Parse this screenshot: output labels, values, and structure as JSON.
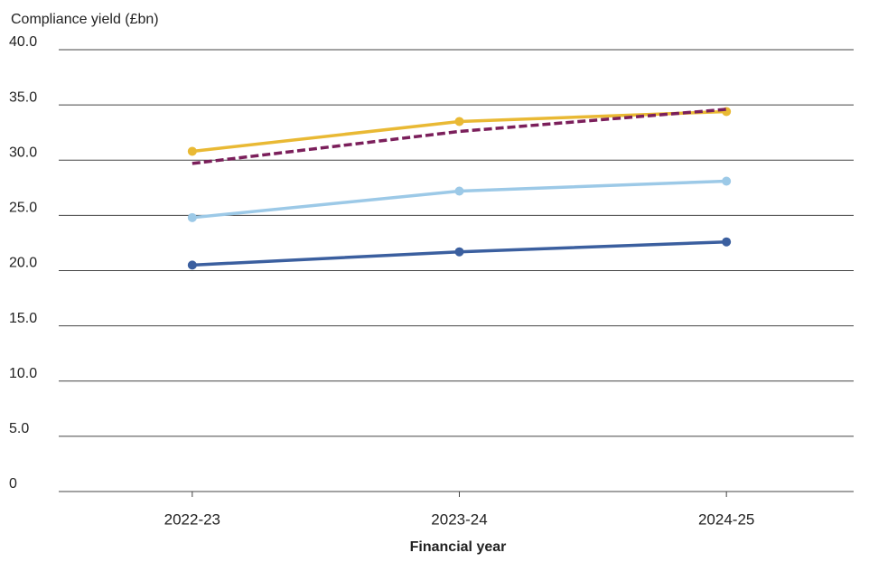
{
  "chart_data": {
    "type": "line",
    "y_label": "Compliance yield (£bn)",
    "x_label": "Financial year",
    "categories": [
      "2022-23",
      "2023-24",
      "2024-25"
    ],
    "series": [
      {
        "color": "#3b5f9f",
        "values": [
          20.5,
          21.7,
          22.6
        ],
        "markers": true,
        "line_style": "solid"
      },
      {
        "color": "#9cc9e7",
        "values": [
          24.8,
          27.2,
          28.1
        ],
        "markers": true,
        "line_style": "solid"
      },
      {
        "color": "#e9b934",
        "values": [
          30.8,
          33.5,
          34.4
        ],
        "markers": true,
        "line_style": "solid"
      },
      {
        "color": "#7b1f5b",
        "values": [
          29.7,
          32.6,
          34.6
        ],
        "markers": false,
        "line_style": "dashed"
      }
    ],
    "ylim": [
      0,
      40
    ],
    "yticks": [
      0,
      {
        "value": 5,
        "label": "5.0"
      },
      {
        "value": 10,
        "label": "10.0"
      },
      {
        "value": 15,
        "label": "15.0"
      },
      {
        "value": 20,
        "label": "20.0"
      },
      {
        "value": 25,
        "label": "25.0"
      },
      {
        "value": 30,
        "label": "30.0"
      },
      {
        "value": 35,
        "label": "35.0"
      },
      {
        "value": 40,
        "label": "40.0"
      }
    ],
    "grid": true
  }
}
